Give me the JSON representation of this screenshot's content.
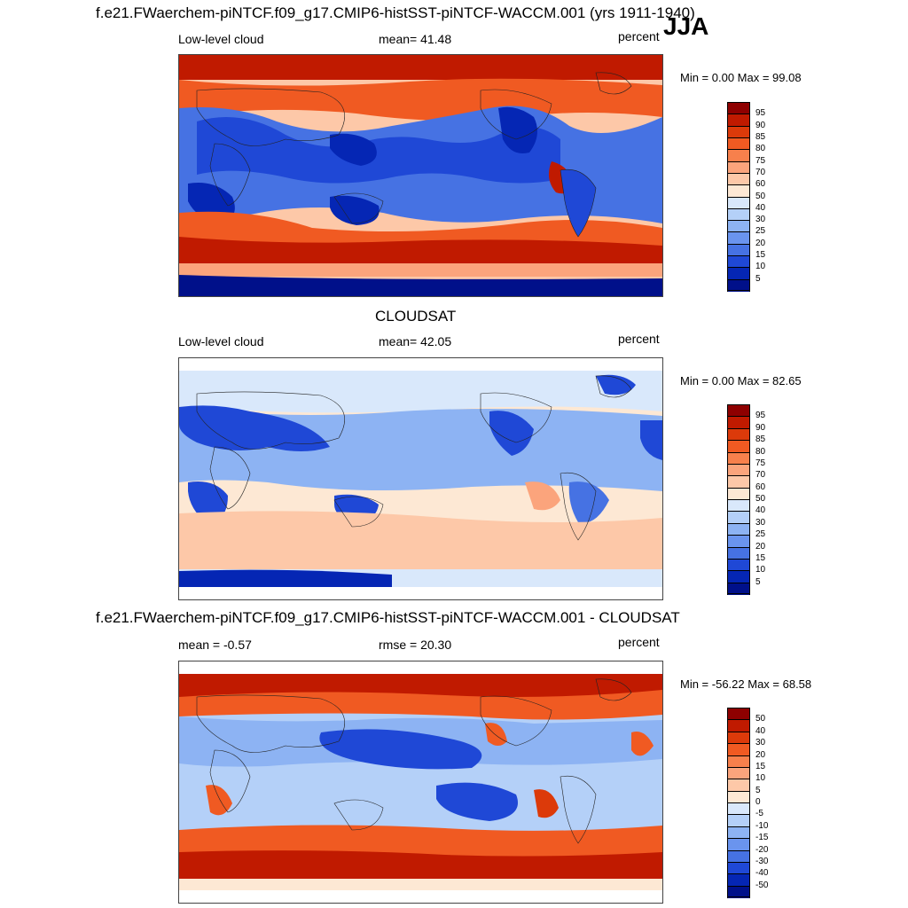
{
  "header": {
    "title": "f.e21.FWaerchem-piNTCF.f09_g17.CMIP6-histSST-piNTCF-WACCM.001 (yrs 1911-1940)",
    "season": "JJA"
  },
  "panels": [
    {
      "id": "model",
      "left_label": "Low-level cloud",
      "center_label": "mean=  41.48",
      "units": "percent",
      "minmax": "Min =   0.00 Max =  99.08"
    },
    {
      "id": "cloudsat",
      "heading": "CLOUDSAT",
      "left_label": "Low-level cloud",
      "center_label": "mean=  42.05",
      "units": "percent",
      "minmax": "Min =   0.00 Max =  82.65"
    },
    {
      "id": "diff",
      "heading": "f.e21.FWaerchem-piNTCF.f09_g17.CMIP6-histSST-piNTCF-WACCM.001 - CLOUDSAT",
      "left_label": "mean =  -0.57",
      "center_label": "rmse =  20.30",
      "units": "percent",
      "minmax": "Min = -56.22 Max =  68.58"
    }
  ],
  "colorbars": {
    "abs": {
      "labels": [
        "95",
        "90",
        "85",
        "80",
        "75",
        "70",
        "60",
        "50",
        "40",
        "30",
        "25",
        "20",
        "15",
        "10",
        "5"
      ],
      "colors": [
        "#8e0000",
        "#c01a00",
        "#dc3a0a",
        "#f05a22",
        "#f7804c",
        "#fba47c",
        "#fdc8a8",
        "#fde8d4",
        "#d9e8fb",
        "#b4d0f8",
        "#8db3f3",
        "#6a94ee",
        "#4672e3",
        "#1f48d6",
        "#0526b4",
        "#00108a"
      ]
    },
    "diff": {
      "labels": [
        "50",
        "40",
        "30",
        "20",
        "15",
        "10",
        "5",
        "0",
        "-5",
        "-10",
        "-15",
        "-20",
        "-30",
        "-40",
        "-50"
      ],
      "colors": [
        "#8e0000",
        "#c01a00",
        "#dc3a0a",
        "#f05a22",
        "#f7804c",
        "#fba47c",
        "#fdc8a8",
        "#fde8d4",
        "#d9e8fb",
        "#b4d0f8",
        "#8db3f3",
        "#6a94ee",
        "#4672e3",
        "#1f48d6",
        "#0526b4",
        "#00108a"
      ]
    }
  }
}
